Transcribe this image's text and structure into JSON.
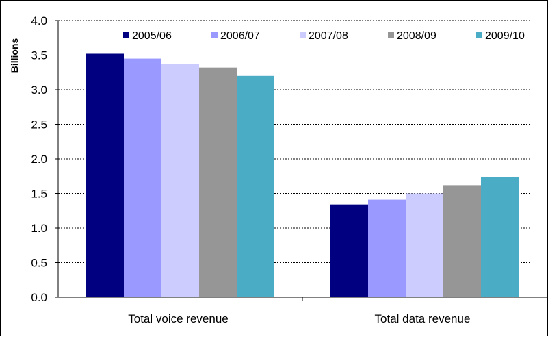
{
  "chart_data": {
    "type": "bar",
    "title": "",
    "xlabel": "",
    "ylabel": "Billions",
    "ylim": [
      0,
      4.0
    ],
    "ytick_step": 0.5,
    "ytick_labels": [
      "0.0",
      "0.5",
      "1.0",
      "1.5",
      "2.0",
      "2.5",
      "3.0",
      "3.5",
      "4.0"
    ],
    "grid": true,
    "legend_position": "top",
    "categories": [
      "Total voice revenue",
      "Total data revenue"
    ],
    "series": [
      {
        "name": "2005/06",
        "color": "#000080",
        "values": [
          3.52,
          1.34
        ]
      },
      {
        "name": "2006/07",
        "color": "#9999FF",
        "values": [
          3.45,
          1.41
        ]
      },
      {
        "name": "2007/08",
        "color": "#CCCCFF",
        "values": [
          3.37,
          1.5
        ]
      },
      {
        "name": "2008/09",
        "color": "#969696",
        "values": [
          3.32,
          1.62
        ]
      },
      {
        "name": "2009/10",
        "color": "#4BACC6",
        "values": [
          3.2,
          1.74
        ]
      }
    ]
  }
}
